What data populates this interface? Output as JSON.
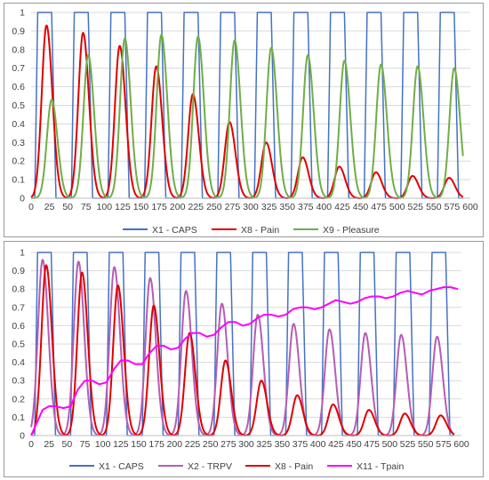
{
  "chart_data": [
    {
      "type": "line",
      "x_ticks": [
        0,
        25,
        50,
        75,
        100,
        125,
        150,
        175,
        200,
        225,
        250,
        275,
        300,
        325,
        350,
        375,
        400,
        425,
        450,
        475,
        500,
        525,
        550,
        575,
        600
      ],
      "y_ticks": [
        0,
        0.1,
        0.2,
        0.3,
        0.4,
        0.5,
        0.6,
        0.7,
        0.8,
        0.9,
        1
      ],
      "x_tick_labels": [
        "0",
        "25",
        "50",
        "75",
        "100",
        "125",
        "150",
        "175",
        "200",
        "225",
        "250",
        "275",
        "300",
        "325",
        "350",
        "375",
        "400",
        "425",
        "450",
        "475",
        "500",
        "525",
        "550",
        "575",
        "600"
      ],
      "y_tick_labels": [
        "0",
        "0.1",
        "0.2",
        "0.3",
        "0.4",
        "0.5",
        "0.6",
        "0.7",
        "0.8",
        "0.9",
        "1"
      ],
      "xlim": [
        0,
        600
      ],
      "ylim": [
        0,
        1
      ],
      "grid": "horizontal",
      "legend": "bottom",
      "pulse": {
        "period": 50,
        "on_start": 5,
        "on_end": 28,
        "rise_time": 4,
        "fall_time": 6
      },
      "series": [
        {
          "name": "X1 - CAPS",
          "color": "#4472C4",
          "kind": "pulse",
          "peak": 1.0
        },
        {
          "name": "X8 - Pain",
          "color": "#E00000",
          "kind": "peaks",
          "peak_x": [
            21,
            71,
            121,
            171,
            221,
            271,
            321,
            371,
            421,
            471,
            521,
            571
          ],
          "peak_y": [
            0.93,
            0.89,
            0.82,
            0.71,
            0.56,
            0.41,
            0.3,
            0.22,
            0.17,
            0.14,
            0.12,
            0.11
          ]
        },
        {
          "name": "X9 - Pleasure",
          "color": "#70AD47",
          "kind": "peaks",
          "peak_x": [
            28,
            78,
            128,
            178,
            228,
            278,
            328,
            378,
            428,
            478,
            528,
            578
          ],
          "peak_y": [
            0.53,
            0.77,
            0.86,
            0.88,
            0.87,
            0.85,
            0.81,
            0.77,
            0.74,
            0.72,
            0.71,
            0.7
          ]
        }
      ]
    },
    {
      "type": "line",
      "x_ticks": [
        0,
        25,
        50,
        75,
        100,
        125,
        150,
        175,
        200,
        225,
        250,
        275,
        300,
        325,
        350,
        375,
        400,
        425,
        450,
        475,
        500,
        525,
        550,
        575,
        600
      ],
      "y_ticks": [
        0,
        0.1,
        0.2,
        0.3,
        0.4,
        0.5,
        0.6,
        0.7,
        0.8,
        0.9,
        1
      ],
      "x_tick_labels": [
        "0",
        "25",
        "50",
        "75",
        "100",
        "125",
        "150",
        "175",
        "200",
        "225",
        "250",
        "275",
        "300",
        "325",
        "350",
        "375",
        "400",
        "425",
        "450",
        "475",
        "500",
        "525",
        "550",
        "575",
        "600"
      ],
      "y_tick_labels": [
        "0",
        "0.1",
        "0.2",
        "0.3",
        "0.4",
        "0.5",
        "0.6",
        "0.7",
        "0.8",
        "0.9",
        "1"
      ],
      "xlim": [
        0,
        600
      ],
      "ylim": [
        0,
        1
      ],
      "grid": "horizontal",
      "legend": "bottom",
      "pulse": {
        "period": 50,
        "on_start": 5,
        "on_end": 28,
        "rise_time": 4,
        "fall_time": 6
      },
      "series": [
        {
          "name": "X1 - CAPS",
          "color": "#4472C4",
          "kind": "pulse",
          "peak": 1.0
        },
        {
          "name": "X2 - TRPV",
          "color": "#B55DB4",
          "kind": "peaks",
          "peak_x": [
            16,
            66,
            116,
            166,
            216,
            266,
            316,
            366,
            416,
            466,
            516,
            566
          ],
          "peak_y": [
            0.96,
            0.95,
            0.92,
            0.86,
            0.79,
            0.72,
            0.66,
            0.61,
            0.58,
            0.56,
            0.55,
            0.54
          ]
        },
        {
          "name": "X8 - Pain",
          "color": "#E00000",
          "kind": "peaks",
          "peak_x": [
            21,
            71,
            121,
            171,
            221,
            271,
            321,
            371,
            421,
            471,
            521,
            571
          ],
          "peak_y": [
            0.93,
            0.89,
            0.82,
            0.71,
            0.56,
            0.41,
            0.3,
            0.22,
            0.17,
            0.14,
            0.12,
            0.11
          ]
        },
        {
          "name": "X11 - Tpain",
          "color": "#FF00FF",
          "kind": "poly",
          "x": [
            0,
            8,
            16,
            25,
            35,
            45,
            55,
            65,
            75,
            85,
            95,
            105,
            115,
            125,
            135,
            145,
            155,
            165,
            175,
            185,
            195,
            205,
            215,
            225,
            235,
            245,
            255,
            265,
            275,
            285,
            295,
            305,
            315,
            325,
            335,
            345,
            355,
            365,
            375,
            385,
            395,
            405,
            415,
            425,
            435,
            445,
            455,
            465,
            475,
            485,
            495,
            505,
            515,
            525,
            535,
            545,
            555,
            565,
            575,
            585,
            595
          ],
          "y": [
            0,
            0.07,
            0.14,
            0.16,
            0.16,
            0.15,
            0.16,
            0.25,
            0.3,
            0.3,
            0.28,
            0.29,
            0.36,
            0.41,
            0.41,
            0.39,
            0.39,
            0.45,
            0.49,
            0.49,
            0.47,
            0.48,
            0.53,
            0.56,
            0.56,
            0.54,
            0.55,
            0.59,
            0.62,
            0.62,
            0.6,
            0.61,
            0.64,
            0.66,
            0.66,
            0.65,
            0.66,
            0.69,
            0.7,
            0.7,
            0.69,
            0.7,
            0.72,
            0.74,
            0.73,
            0.72,
            0.73,
            0.75,
            0.76,
            0.76,
            0.75,
            0.76,
            0.78,
            0.79,
            0.78,
            0.77,
            0.79,
            0.8,
            0.81,
            0.81,
            0.8
          ]
        }
      ]
    }
  ]
}
